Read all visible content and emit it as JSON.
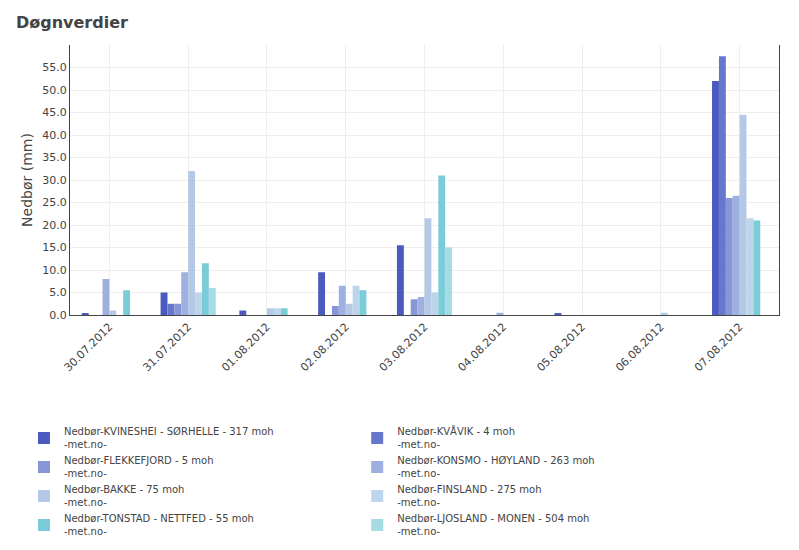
{
  "chart_data": {
    "type": "bar",
    "title": "Døgnverdier",
    "ylabel": "Nedbør (mm)",
    "categories": [
      "30.07.2012",
      "31.07.2012",
      "01.08.2012",
      "02.08.2012",
      "03.08.2012",
      "04.08.2012",
      "05.08.2012",
      "06.08.2012",
      "07.08.2012"
    ],
    "series": [
      {
        "name": "Nedbør-KVINESHEI - SØRHELLE - 317 moh\n-met.no-",
        "color": "#4a5abf",
        "values": [
          0.4,
          5.0,
          1.0,
          9.5,
          15.5,
          0.0,
          0.3,
          0.0,
          52.0
        ]
      },
      {
        "name": "Nedbør-KVÅVIK - 4 moh\n-met.no-",
        "color": "#6678cc",
        "values": [
          0.0,
          2.5,
          0.0,
          0.0,
          0.0,
          0.0,
          0.0,
          0.0,
          57.5
        ]
      },
      {
        "name": "Nedbør-FLEKKEFJORD - 5 moh\n-met.no-",
        "color": "#8896d8",
        "values": [
          0.0,
          2.5,
          0.0,
          2.0,
          3.5,
          0.0,
          0.0,
          0.0,
          26.0
        ]
      },
      {
        "name": "Nedbør-KONSMO - HØYLAND - 263 moh\n-met.no-",
        "color": "#9db0df",
        "values": [
          8.0,
          9.5,
          0.0,
          6.5,
          4.0,
          0.5,
          0.0,
          0.0,
          26.5
        ]
      },
      {
        "name": "Nedbør-BAKKE - 75 moh\n-met.no-",
        "color": "#b5c8e6",
        "values": [
          1.0,
          32.0,
          1.5,
          2.5,
          21.5,
          0.0,
          0.0,
          0.5,
          44.5
        ]
      },
      {
        "name": "Nedbør-FINSLAND - 275 moh\n-met.no-",
        "color": "#bdd5ea",
        "values": [
          0.0,
          5.0,
          1.5,
          6.5,
          5.0,
          0.0,
          0.0,
          0.0,
          21.5
        ]
      },
      {
        "name": "Nedbør-TONSTAD - NETTFED - 55 moh\n-met.no-",
        "color": "#7accd8",
        "values": [
          5.5,
          11.5,
          1.5,
          5.5,
          31.0,
          0.0,
          0.0,
          0.0,
          21.0
        ]
      },
      {
        "name": "Nedbør-LJOSLAND - MONEN - 504 moh\n-met.no-",
        "color": "#a5dce4",
        "values": [
          0.0,
          6.0,
          0.0,
          0.0,
          15.0,
          0.0,
          0.0,
          0.0,
          0.0
        ]
      }
    ],
    "ylim": [
      0,
      60
    ],
    "yticks": [
      {
        "value": 0,
        "label": "0.0"
      },
      {
        "value": 5,
        "label": "5.0"
      },
      {
        "value": 10,
        "label": "10.0"
      },
      {
        "value": 15,
        "label": "15.0"
      },
      {
        "value": 20,
        "label": "20.0"
      },
      {
        "value": 25,
        "label": "25.0"
      },
      {
        "value": 30,
        "label": "30.0"
      },
      {
        "value": 35,
        "label": "35.0"
      },
      {
        "value": 40,
        "label": "40.0"
      },
      {
        "value": 45,
        "label": "45.0"
      },
      {
        "value": 50,
        "label": "50.0"
      },
      {
        "value": 55,
        "label": "55.0"
      }
    ],
    "grid": true,
    "legend": "bottom"
  }
}
